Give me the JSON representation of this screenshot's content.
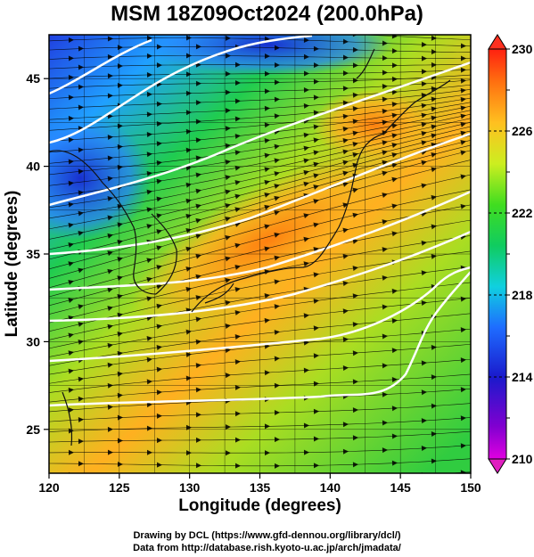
{
  "title": "MSM 18Z09Oct2024 (200.0hPa)",
  "xlabel": "Longitude (degrees)",
  "ylabel": "Latitude  (degrees)",
  "footer": {
    "line1": "Drawing by DCL (https://www.gfd-dennou.org/library/dcl/)",
    "line2": "Data from http://database.rish.kyoto-u.ac.jp/arch/jmadata/"
  },
  "chart_data": {
    "type": "heatmap",
    "x_ticks": [
      120,
      125,
      130,
      135,
      140,
      145,
      150
    ],
    "y_ticks": [
      25,
      30,
      35,
      40,
      45
    ],
    "xlim": [
      120,
      150
    ],
    "ylim": [
      22.5,
      47.5
    ],
    "colorbar": {
      "ticks": [
        210,
        214,
        218,
        222,
        226,
        230
      ],
      "range": [
        210,
        230
      ],
      "extend": "both"
    },
    "colors": {
      "cold": "#1e2fd0",
      "cool": "#2fa0ff",
      "mid": "#22cc44",
      "warm": "#ccee22",
      "hot": "#ff8a10",
      "contour": "#ffffff",
      "streamline": "#000000"
    }
  }
}
